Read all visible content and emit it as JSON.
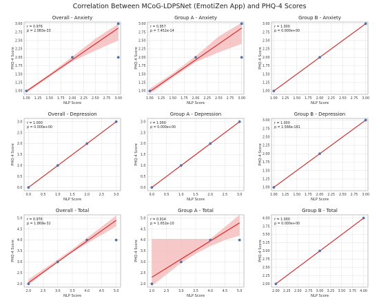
{
  "figure": {
    "title": "Correlation Between MCoG-LDPSNet (EmotiZen App) and PHQ-4 Scores"
  },
  "style": {
    "point_color": "#4c72b0",
    "line_color": "#e31a1c",
    "band_color": "#f4b6b6",
    "grid_color": "#e6e6e6",
    "axes_background": "#ffffff"
  },
  "chart_data": [
    {
      "type": "scatter",
      "title": "Overall - Anxiety",
      "xlabel": "NLP Score",
      "ylabel": "PHQ-4 Score",
      "stats": [
        "r = 0.976",
        "p = 2.083e-33"
      ],
      "xlim": [
        0.95,
        3.05
      ],
      "ylim": [
        0.9,
        3.05
      ],
      "xticks": [
        1.0,
        1.25,
        1.5,
        1.75,
        2.0,
        2.25,
        2.5,
        2.75,
        3.0
      ],
      "xticklabels": [
        "1.00",
        "1.25",
        "1.50",
        "1.75",
        "2.00",
        "2.25",
        "2.50",
        "2.75",
        "3.00"
      ],
      "yticks": [
        1.0,
        1.25,
        1.5,
        1.75,
        2.0,
        2.25,
        2.5,
        2.75,
        3.0
      ],
      "yticklabels": [
        "1.00",
        "1.25",
        "1.50",
        "1.75",
        "2.00",
        "2.25",
        "2.50",
        "2.75",
        "3.00"
      ],
      "points": [
        [
          1,
          1
        ],
        [
          2,
          2
        ],
        [
          3,
          3
        ],
        [
          3,
          2
        ]
      ],
      "fit": [
        [
          1,
          0.99
        ],
        [
          3,
          2.87
        ]
      ],
      "band": {
        "x": [
          1,
          1.5,
          2,
          2.5,
          3
        ],
        "lower": [
          0.95,
          1.42,
          1.88,
          2.2,
          2.5
        ],
        "upper": [
          1.03,
          1.5,
          2.02,
          2.55,
          3.0
        ]
      }
    },
    {
      "type": "scatter",
      "title": "Group A - Anxiety",
      "xlabel": "NLP Score",
      "ylabel": "PHQ-4 Score",
      "stats": [
        "r = 0.957",
        "p = 7.452e-14"
      ],
      "xlim": [
        0.95,
        3.05
      ],
      "ylim": [
        0.9,
        3.05
      ],
      "xticks": [
        1.0,
        1.25,
        1.5,
        1.75,
        2.0,
        2.25,
        2.5,
        2.75,
        3.0
      ],
      "xticklabels": [
        "1.00",
        "1.25",
        "1.50",
        "1.75",
        "2.00",
        "2.25",
        "2.50",
        "2.75",
        "3.00"
      ],
      "yticks": [
        1.0,
        1.25,
        1.5,
        1.75,
        2.0,
        2.25,
        2.5,
        2.75,
        3.0
      ],
      "yticklabels": [
        "1.00",
        "1.25",
        "1.50",
        "1.75",
        "2.00",
        "2.25",
        "2.50",
        "2.75",
        "3.00"
      ],
      "points": [
        [
          1,
          1
        ],
        [
          2,
          2
        ],
        [
          3,
          3
        ],
        [
          3,
          2
        ]
      ],
      "fit": [
        [
          1,
          0.98
        ],
        [
          3,
          2.87
        ]
      ],
      "band": {
        "x": [
          1,
          1.5,
          2,
          2.5,
          3
        ],
        "lower": [
          0.92,
          1.4,
          1.86,
          2.15,
          2.4
        ],
        "upper": [
          1.07,
          1.52,
          2.04,
          2.62,
          3.03
        ]
      }
    },
    {
      "type": "scatter",
      "title": "Group B - Anxiety",
      "xlabel": "NLP Score",
      "ylabel": "PHQ-4 Score",
      "stats": [
        "r = 1.000",
        "p = 0.000e+00"
      ],
      "xlim": [
        0.95,
        3.05
      ],
      "ylim": [
        0.9,
        3.05
      ],
      "xticks": [
        1.0,
        1.25,
        1.5,
        1.75,
        2.0,
        2.25,
        2.5,
        2.75,
        3.0
      ],
      "xticklabels": [
        "1.00",
        "1.25",
        "1.50",
        "1.75",
        "2.00",
        "2.25",
        "2.50",
        "2.75",
        "3.00"
      ],
      "yticks": [
        1.0,
        1.25,
        1.5,
        1.75,
        2.0,
        2.25,
        2.5,
        2.75,
        3.0
      ],
      "yticklabels": [
        "1.00",
        "1.25",
        "1.50",
        "1.75",
        "2.00",
        "2.25",
        "2.50",
        "2.75",
        "3.00"
      ],
      "points": [
        [
          1,
          1
        ],
        [
          2,
          2
        ],
        [
          3,
          3
        ]
      ],
      "fit": [
        [
          1,
          1
        ],
        [
          3,
          3
        ]
      ]
    },
    {
      "type": "scatter",
      "title": "Overall - Depression",
      "xlabel": "NLP Score",
      "ylabel": "PHQ-4 Score",
      "stats": [
        "r = 1.000",
        "p = 0.000e+00"
      ],
      "xlim": [
        -0.15,
        3.15
      ],
      "ylim": [
        -0.15,
        3.15
      ],
      "xticks": [
        0.0,
        0.5,
        1.0,
        1.5,
        2.0,
        2.5,
        3.0
      ],
      "xticklabels": [
        "0.0",
        "0.5",
        "1.0",
        "1.5",
        "2.0",
        "2.5",
        "3.0"
      ],
      "yticks": [
        0.0,
        0.5,
        1.0,
        1.5,
        2.0,
        2.5,
        3.0
      ],
      "yticklabels": [
        "0.0",
        "0.5",
        "1.0",
        "1.5",
        "2.0",
        "2.5",
        "3.0"
      ],
      "points": [
        [
          0,
          0
        ],
        [
          1,
          1
        ],
        [
          2,
          2
        ],
        [
          3,
          3
        ]
      ],
      "fit": [
        [
          0,
          0
        ],
        [
          3,
          3
        ]
      ]
    },
    {
      "type": "scatter",
      "title": "Group A - Depression",
      "xlabel": "NLP Score",
      "ylabel": "PHQ-4 Score",
      "stats": [
        "r = 1.000",
        "p = 0.000e+00"
      ],
      "xlim": [
        -0.15,
        3.15
      ],
      "ylim": [
        -0.15,
        3.15
      ],
      "xticks": [
        0.0,
        0.5,
        1.0,
        1.5,
        2.0,
        2.5,
        3.0
      ],
      "xticklabels": [
        "0.0",
        "0.5",
        "1.0",
        "1.5",
        "2.0",
        "2.5",
        "3.0"
      ],
      "yticks": [
        0.0,
        0.5,
        1.0,
        1.5,
        2.0,
        2.5,
        3.0
      ],
      "yticklabels": [
        "0.0",
        "0.5",
        "1.0",
        "1.5",
        "2.0",
        "2.5",
        "3.0"
      ],
      "points": [
        [
          0,
          0
        ],
        [
          1,
          1
        ],
        [
          2,
          2
        ],
        [
          3,
          3
        ]
      ],
      "fit": [
        [
          0,
          0
        ],
        [
          3,
          3
        ]
      ]
    },
    {
      "type": "scatter",
      "title": "Group B - Depression",
      "xlabel": "NLP Score",
      "ylabel": "PHQ-4 Score",
      "stats": [
        "r = 1.000",
        "p = 1.566e-181"
      ],
      "xlim": [
        0.95,
        3.05
      ],
      "ylim": [
        0.9,
        3.05
      ],
      "xticks": [
        1.0,
        1.25,
        1.5,
        1.75,
        2.0,
        2.25,
        2.5,
        2.75,
        3.0
      ],
      "xticklabels": [
        "1.00",
        "1.25",
        "1.50",
        "1.75",
        "2.00",
        "2.25",
        "2.50",
        "2.75",
        "3.00"
      ],
      "yticks": [
        1.0,
        1.25,
        1.5,
        1.75,
        2.0,
        2.25,
        2.5,
        2.75,
        3.0
      ],
      "yticklabels": [
        "1.00",
        "1.25",
        "1.50",
        "1.75",
        "2.00",
        "2.25",
        "2.50",
        "2.75",
        "3.00"
      ],
      "points": [
        [
          1,
          1
        ],
        [
          2,
          2
        ],
        [
          3,
          3
        ]
      ],
      "fit": [
        [
          1,
          1
        ],
        [
          3,
          3
        ]
      ]
    },
    {
      "type": "scatter",
      "title": "Overall - Total",
      "xlabel": "NLP Score",
      "ylabel": "PHQ-4 Score",
      "stats": [
        "r = 0.976",
        "p = 1.869e-32"
      ],
      "xlim": [
        1.85,
        5.15
      ],
      "ylim": [
        1.85,
        5.15
      ],
      "xticks": [
        2.0,
        2.5,
        3.0,
        3.5,
        4.0,
        4.5,
        5.0
      ],
      "xticklabels": [
        "2.0",
        "2.5",
        "3.0",
        "3.5",
        "4.0",
        "4.5",
        "5.0"
      ],
      "yticks": [
        2.0,
        2.5,
        3.0,
        3.5,
        4.0,
        4.5,
        5.0
      ],
      "yticklabels": [
        "2.0",
        "2.5",
        "3.0",
        "3.5",
        "4.0",
        "4.5",
        "5.0"
      ],
      "points": [
        [
          2,
          2
        ],
        [
          3,
          3
        ],
        [
          4,
          4
        ],
        [
          5,
          4
        ]
      ],
      "fit": [
        [
          2,
          2.05
        ],
        [
          5,
          4.9
        ]
      ],
      "band": {
        "x": [
          2,
          2.75,
          3.5,
          4.25,
          5
        ],
        "lower": [
          1.95,
          2.74,
          3.45,
          4.04,
          4.62
        ],
        "upper": [
          2.2,
          2.88,
          3.58,
          4.35,
          5.12
        ]
      }
    },
    {
      "type": "scatter",
      "title": "Group A - Total",
      "xlabel": "NLP Score",
      "ylabel": "PHQ-4 Score",
      "stats": [
        "r = 0.914",
        "p = 1.652e-10"
      ],
      "xlim": [
        1.85,
        5.15
      ],
      "ylim": [
        1.85,
        5.15
      ],
      "xticks": [
        2.0,
        2.5,
        3.0,
        3.5,
        4.0,
        4.5,
        5.0
      ],
      "xticklabels": [
        "2.0",
        "2.5",
        "3.0",
        "3.5",
        "4.0",
        "4.5",
        "5.0"
      ],
      "yticks": [
        2.0,
        2.5,
        3.0,
        3.5,
        4.0,
        4.5,
        5.0
      ],
      "yticklabels": [
        "2.0",
        "2.5",
        "3.0",
        "3.5",
        "4.0",
        "4.5",
        "5.0"
      ],
      "points": [
        [
          2,
          2
        ],
        [
          3,
          3
        ],
        [
          4,
          4
        ],
        [
          5,
          4
        ]
      ],
      "fit": [
        [
          2,
          2.3
        ],
        [
          5,
          4.78
        ]
      ],
      "band": {
        "x": [
          2,
          3,
          3.5,
          4,
          4.5,
          5
        ],
        "lower": [
          1.9,
          2.95,
          3.37,
          3.72,
          4.0,
          4.2
        ],
        "upper": [
          4.05,
          4.05,
          4.05,
          4.05,
          4.6,
          5.15
        ]
      }
    },
    {
      "type": "scatter",
      "title": "Group B - Total",
      "xlabel": "NLP Score",
      "ylabel": "PHQ-4 Score",
      "stats": [
        "r = 1.000",
        "p = 0.000e+00"
      ],
      "xlim": [
        1.9,
        4.1
      ],
      "ylim": [
        1.9,
        4.1
      ],
      "xticks": [
        2.0,
        2.25,
        2.5,
        2.75,
        3.0,
        3.25,
        3.5,
        3.75,
        4.0
      ],
      "xticklabels": [
        "2.00",
        "2.25",
        "2.50",
        "2.75",
        "3.00",
        "3.25",
        "3.50",
        "3.75",
        "4.00"
      ],
      "yticks": [
        2.0,
        2.25,
        2.5,
        2.75,
        3.0,
        3.25,
        3.5,
        3.75,
        4.0
      ],
      "yticklabels": [
        "2.00",
        "2.25",
        "2.50",
        "2.75",
        "3.00",
        "3.25",
        "3.50",
        "3.75",
        "4.00"
      ],
      "points": [
        [
          2,
          2
        ],
        [
          3,
          3
        ],
        [
          4,
          4
        ]
      ],
      "fit": [
        [
          2,
          2
        ],
        [
          4,
          4
        ]
      ]
    }
  ]
}
